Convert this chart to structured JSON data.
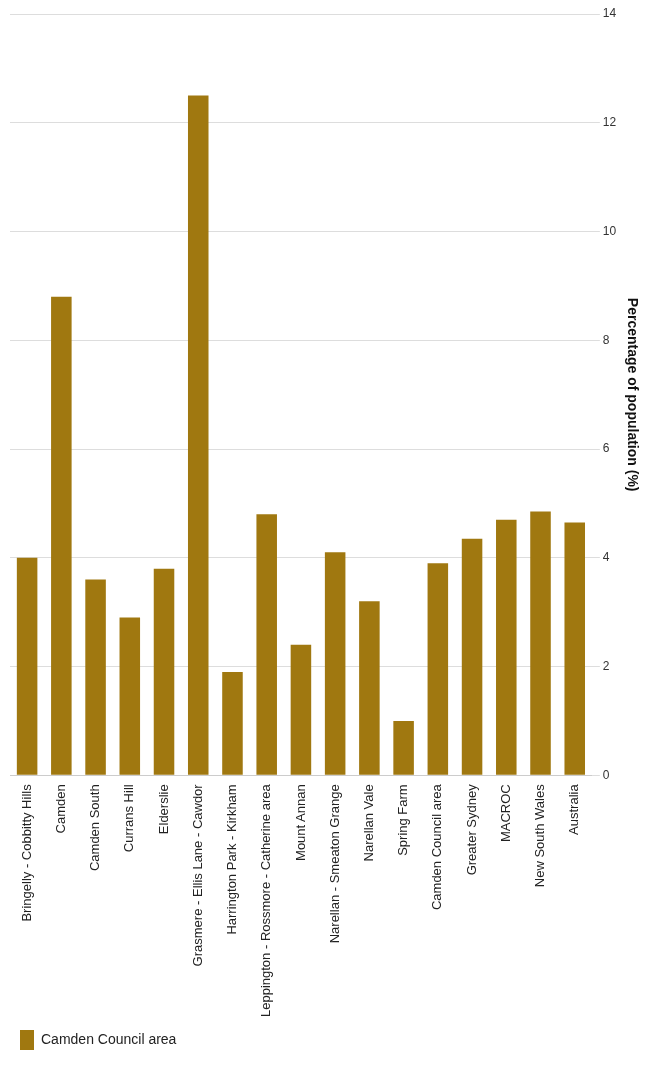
{
  "chart_data": {
    "type": "bar",
    "ylabel": "Percentage of population (%)",
    "categories": [
      "Bringelly - Cobbitty Hills",
      "Camden",
      "Camden South",
      "Currans Hill",
      "Elderslie",
      "Grasmere - Ellis Lane - Cawdor",
      "Harrington Park - Kirkham",
      "Leppington - Rossmore - Catherine area",
      "Mount Annan",
      "Narellan - Smeaton Grange",
      "Narellan Vale",
      "Spring Farm",
      "Camden Council area",
      "Greater Sydney",
      "MACROC",
      "New South Wales",
      "Australia"
    ],
    "series": [
      {
        "name": "Camden Council area",
        "color": "#a07810",
        "values": [
          4.0,
          8.8,
          3.6,
          2.9,
          3.8,
          12.5,
          1.9,
          4.8,
          2.4,
          4.1,
          3.2,
          1.0,
          3.9,
          4.35,
          4.7,
          4.85,
          4.65
        ]
      }
    ],
    "ylim": [
      0,
      14
    ],
    "yticks": [
      0,
      2,
      4,
      6,
      8,
      10,
      12,
      14
    ],
    "grid": "y",
    "legend": "bottom left"
  }
}
